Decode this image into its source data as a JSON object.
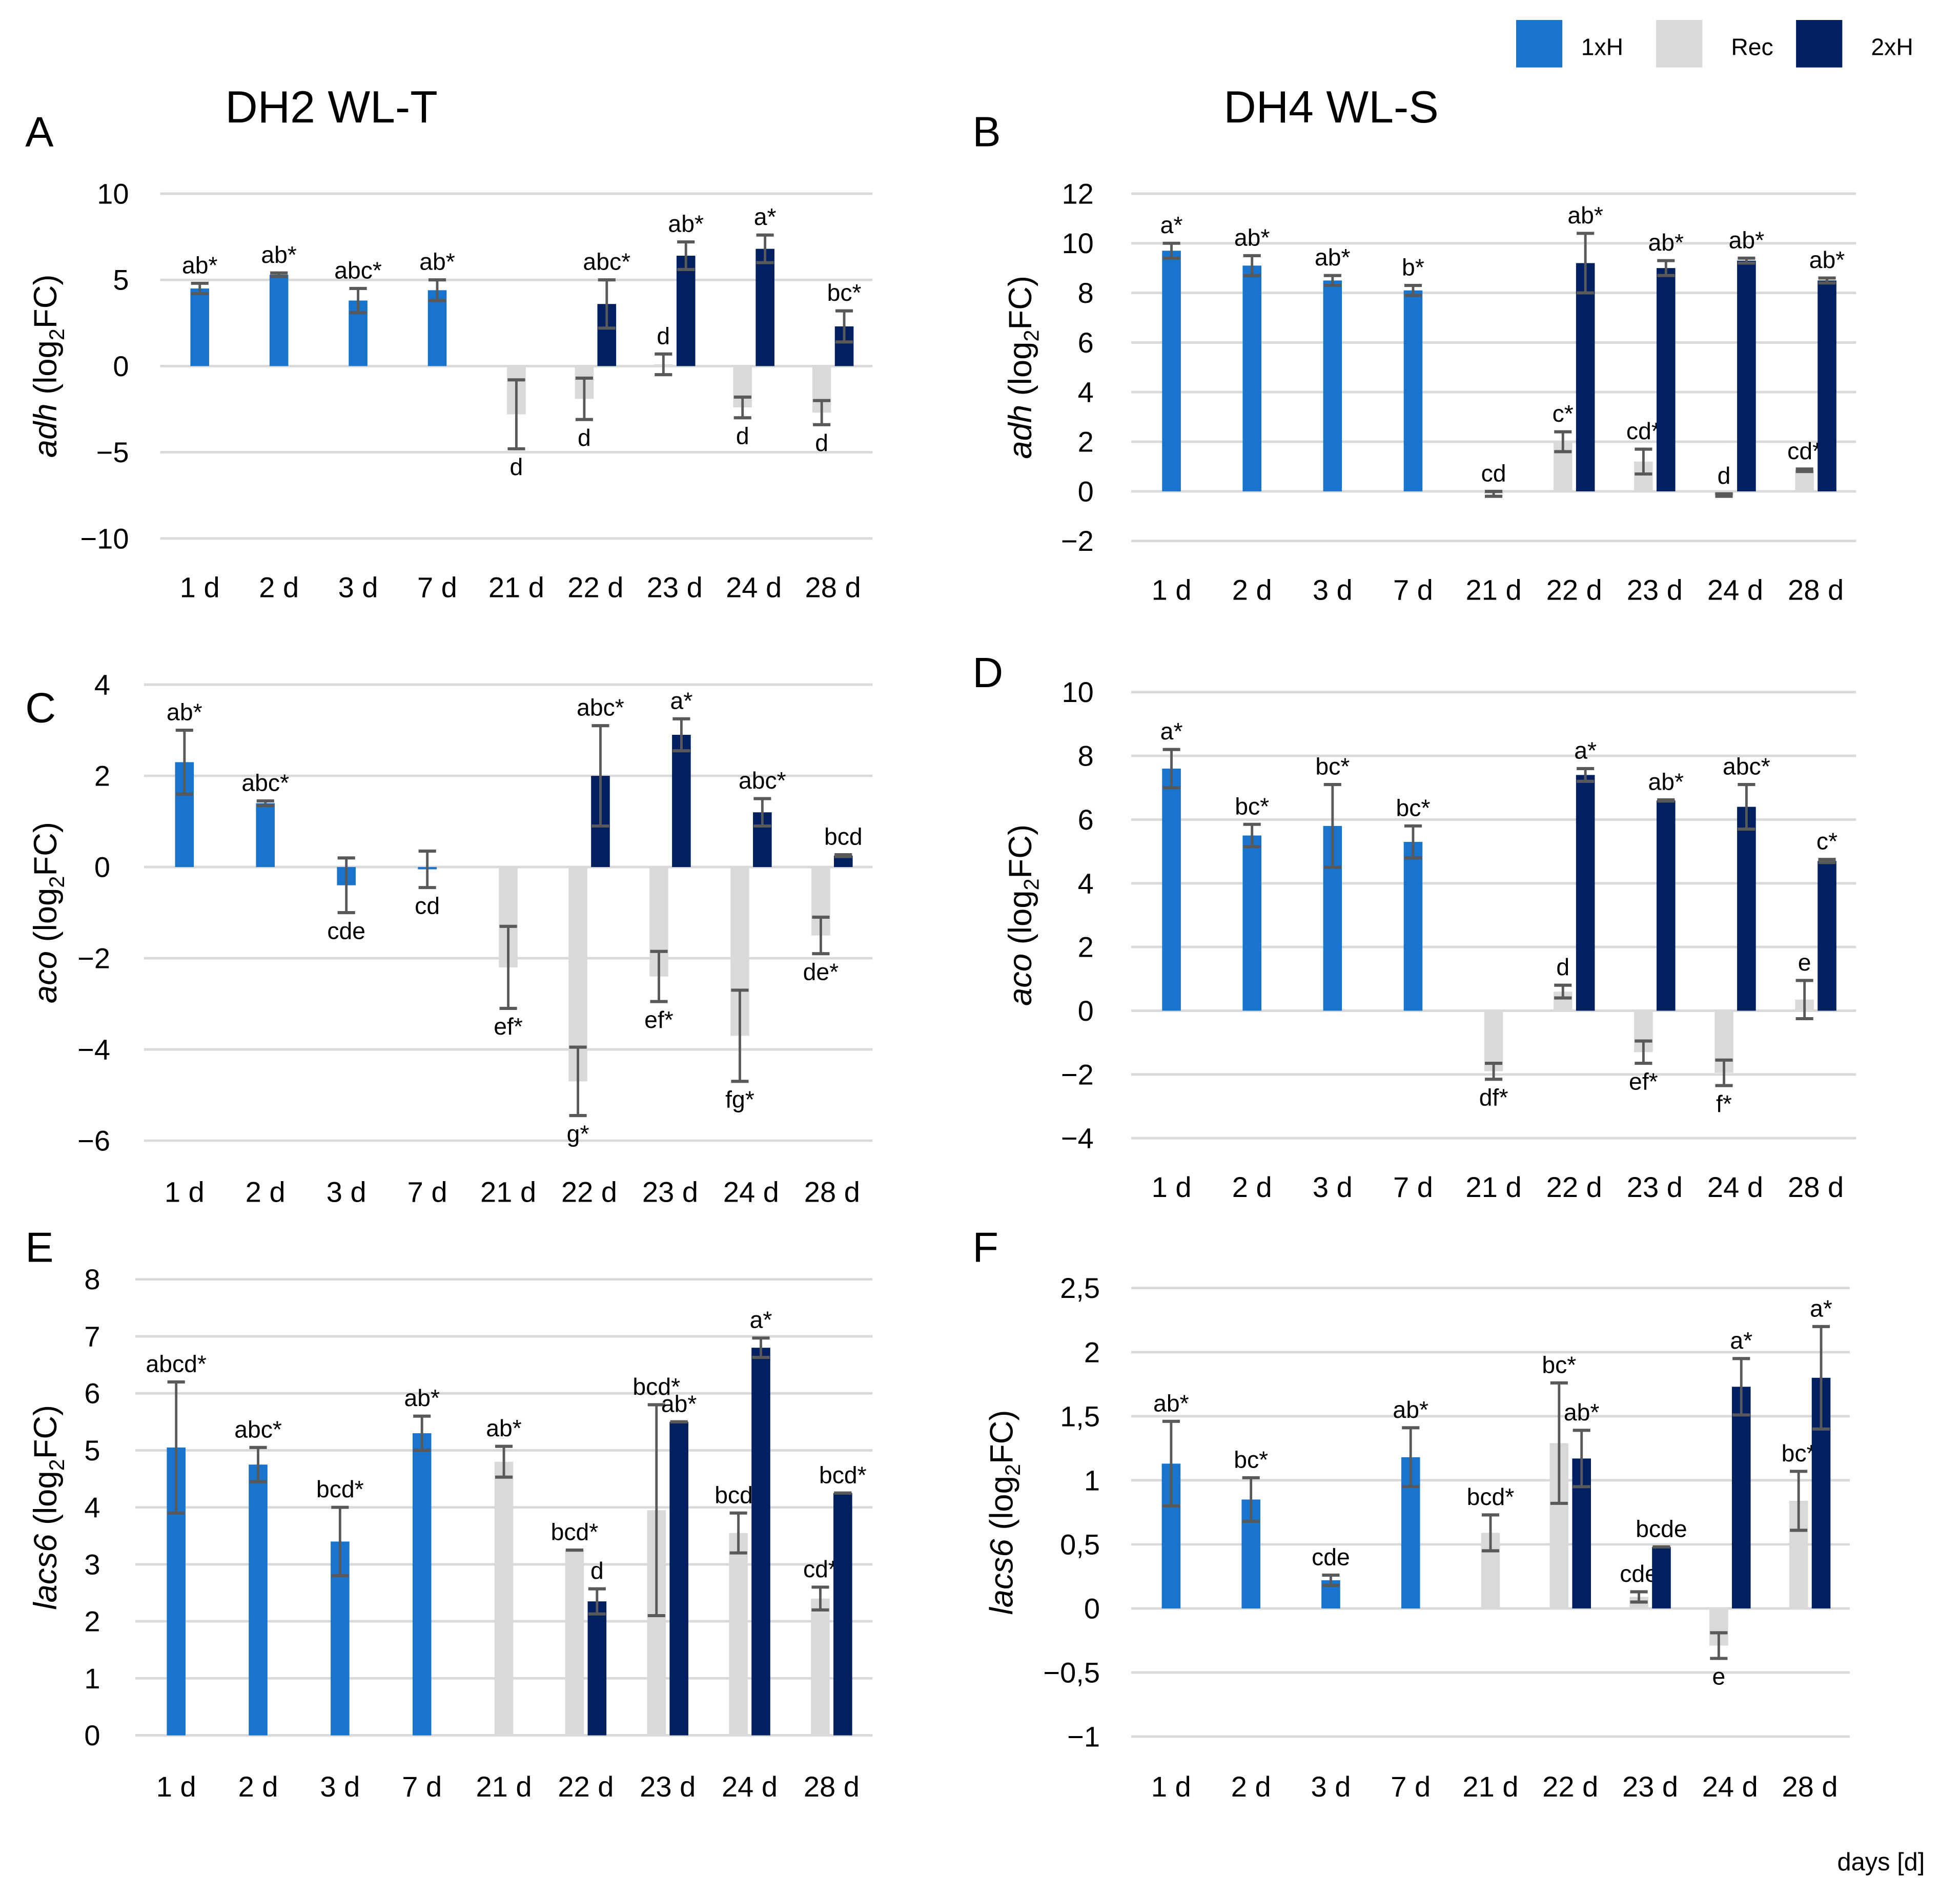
{
  "legend": {
    "items": [
      {
        "name": "1xH",
        "color": "#1874CD"
      },
      {
        "name": "Rec",
        "color": "#D9D9D9"
      },
      {
        "name": "2xH",
        "color": "#002060"
      }
    ]
  },
  "x_axis_note": "days [d]",
  "colors": {
    "grid": "#D9D9D9",
    "error_bar": "#595959"
  },
  "chart_data": [
    {
      "type": "bar",
      "panel_label": "A",
      "title": "DH2 WL-T",
      "ylabel": {
        "gene": "adh",
        "pre": " (log",
        "sub": "2",
        "post": "FC)"
      },
      "ylim": [
        -10,
        10
      ],
      "yticks": [
        10,
        5,
        0,
        -5,
        -10
      ],
      "ytick_labels": [
        "10",
        "5",
        "0",
        "−5",
        "−10"
      ],
      "grid": true,
      "categories": [
        "1 d",
        "2 d",
        "3 d",
        "7 d",
        "21 d",
        "22 d",
        "23 d",
        "24 d",
        "28 d"
      ],
      "series": [
        {
          "name": "1xH",
          "values": [
            4.5,
            5.3,
            3.8,
            4.4,
            null,
            null,
            null,
            null,
            null
          ],
          "errors": [
            0.3,
            0.1,
            0.7,
            0.6,
            null,
            null,
            null,
            null,
            null
          ],
          "labels": [
            "ab*",
            "ab*",
            "abc*",
            "ab*",
            null,
            null,
            null,
            null,
            null
          ]
        },
        {
          "name": "Rec",
          "values": [
            null,
            null,
            null,
            null,
            -2.8,
            -1.9,
            0.1,
            -2.4,
            -2.7
          ],
          "errors": [
            null,
            null,
            null,
            null,
            2.0,
            1.2,
            0.6,
            0.6,
            0.7
          ],
          "labels": [
            null,
            null,
            null,
            null,
            "d",
            "d",
            "d",
            "d",
            "d"
          ]
        },
        {
          "name": "2xH",
          "values": [
            null,
            null,
            null,
            null,
            null,
            3.6,
            6.4,
            6.8,
            2.3
          ],
          "errors": [
            null,
            null,
            null,
            null,
            null,
            1.4,
            0.8,
            0.8,
            0.9
          ],
          "labels": [
            null,
            null,
            null,
            null,
            null,
            "abc*",
            "ab*",
            "a*",
            "bc*"
          ]
        }
      ]
    },
    {
      "type": "bar",
      "panel_label": "B",
      "title": "DH4 WL-S",
      "ylabel": {
        "gene": "adh",
        "pre": " (log",
        "sub": "2",
        "post": "FC)"
      },
      "ylim": [
        -2,
        12
      ],
      "yticks": [
        12,
        10,
        8,
        6,
        4,
        2,
        0,
        -2
      ],
      "ytick_labels": [
        "12",
        "10",
        "8",
        "6",
        "4",
        "2",
        "0",
        "−2"
      ],
      "grid": true,
      "categories": [
        "1 d",
        "2 d",
        "3 d",
        "7 d",
        "21 d",
        "22 d",
        "23 d",
        "24 d",
        "28 d"
      ],
      "series": [
        {
          "name": "1xH",
          "values": [
            9.7,
            9.1,
            8.5,
            8.1,
            null,
            null,
            null,
            null,
            null
          ],
          "errors": [
            0.3,
            0.4,
            0.2,
            0.2,
            null,
            null,
            null,
            null,
            null
          ],
          "labels": [
            "a*",
            "ab*",
            "ab*",
            "b*",
            null,
            null,
            null,
            null,
            null
          ]
        },
        {
          "name": "Rec",
          "values": [
            null,
            null,
            null,
            null,
            -0.1,
            2.0,
            1.2,
            -0.15,
            0.85
          ],
          "errors": [
            null,
            null,
            null,
            null,
            0.1,
            0.4,
            0.5,
            0.05,
            0.05
          ],
          "labels": [
            null,
            null,
            null,
            null,
            "cd",
            "c*",
            "cd*",
            "d",
            "cd*"
          ]
        },
        {
          "name": "2xH",
          "values": [
            null,
            null,
            null,
            null,
            null,
            9.2,
            9.0,
            9.3,
            8.5
          ],
          "errors": [
            null,
            null,
            null,
            null,
            null,
            1.2,
            0.3,
            0.1,
            0.1
          ],
          "labels": [
            null,
            null,
            null,
            null,
            null,
            "ab*",
            "ab*",
            "ab*",
            "ab*"
          ]
        }
      ]
    },
    {
      "type": "bar",
      "panel_label": "C",
      "title": "",
      "ylabel": {
        "gene": "aco",
        "pre": " (log",
        "sub": "2",
        "post": "FC)"
      },
      "ylim": [
        -6,
        4
      ],
      "yticks": [
        4,
        2,
        0,
        -2,
        -4,
        -6
      ],
      "ytick_labels": [
        "4",
        "2",
        "0",
        "−2",
        "−4",
        "−6"
      ],
      "grid": true,
      "categories": [
        "1 d",
        "2 d",
        "3 d",
        "7 d",
        "21 d",
        "22 d",
        "23 d",
        "24 d",
        "28 d"
      ],
      "series": [
        {
          "name": "1xH",
          "values": [
            2.3,
            1.4,
            -0.4,
            -0.05,
            null,
            null,
            null,
            null,
            null
          ],
          "errors": [
            0.7,
            0.05,
            0.6,
            0.4,
            null,
            null,
            null,
            null,
            null
          ],
          "labels": [
            "ab*",
            "abc*",
            "cde",
            "cd",
            null,
            null,
            null,
            null,
            null
          ]
        },
        {
          "name": "Rec",
          "values": [
            null,
            null,
            null,
            null,
            -2.2,
            -4.7,
            -2.4,
            -3.7,
            -1.5
          ],
          "errors": [
            null,
            null,
            null,
            null,
            0.9,
            0.75,
            0.55,
            1.0,
            0.4
          ],
          "labels": [
            null,
            null,
            null,
            null,
            "ef*",
            "g*",
            "ef*",
            "fg*",
            "de*"
          ]
        },
        {
          "name": "2xH",
          "values": [
            null,
            null,
            null,
            null,
            null,
            2.0,
            2.9,
            1.2,
            0.25
          ],
          "errors": [
            null,
            null,
            null,
            null,
            null,
            1.1,
            0.35,
            0.3,
            0.02
          ],
          "labels": [
            null,
            null,
            null,
            null,
            null,
            "abc*",
            "a*",
            "abc*",
            "bcd"
          ]
        }
      ]
    },
    {
      "type": "bar",
      "panel_label": "D",
      "title": "",
      "ylabel": {
        "gene": "aco",
        "pre": " (log",
        "sub": "2",
        "post": "FC)"
      },
      "ylim": [
        -4,
        10
      ],
      "yticks": [
        10,
        8,
        6,
        4,
        2,
        0,
        -2,
        -4
      ],
      "ytick_labels": [
        "10",
        "8",
        "6",
        "4",
        "2",
        "0",
        "−2",
        "−4"
      ],
      "grid": true,
      "categories": [
        "1 d",
        "2 d",
        "3 d",
        "7 d",
        "21 d",
        "22 d",
        "23 d",
        "24 d",
        "28 d"
      ],
      "series": [
        {
          "name": "1xH",
          "values": [
            7.6,
            5.5,
            5.8,
            5.3,
            null,
            null,
            null,
            null,
            null
          ],
          "errors": [
            0.6,
            0.35,
            1.3,
            0.5,
            null,
            null,
            null,
            null,
            null
          ],
          "labels": [
            "a*",
            "bc*",
            "bc*",
            "bc*",
            null,
            null,
            null,
            null,
            null
          ]
        },
        {
          "name": "Rec",
          "values": [
            null,
            null,
            null,
            null,
            -1.9,
            0.6,
            -1.3,
            -1.95,
            0.35
          ],
          "errors": [
            null,
            null,
            null,
            null,
            0.25,
            0.2,
            0.35,
            0.4,
            0.6
          ],
          "labels": [
            null,
            null,
            null,
            null,
            "df*",
            "d",
            "ef*",
            "f*",
            "e"
          ]
        },
        {
          "name": "2xH",
          "values": [
            null,
            null,
            null,
            null,
            null,
            7.4,
            6.6,
            6.4,
            4.7
          ],
          "errors": [
            null,
            null,
            null,
            null,
            null,
            0.2,
            0.02,
            0.7,
            0.05
          ],
          "labels": [
            null,
            null,
            null,
            null,
            null,
            "a*",
            "ab*",
            "abc*",
            "c*"
          ]
        }
      ]
    },
    {
      "type": "bar",
      "panel_label": "E",
      "title": "",
      "ylabel": {
        "gene": "lacs6",
        "pre": " (log",
        "sub": "2",
        "post": "FC)"
      },
      "ylim": [
        0,
        8
      ],
      "yticks": [
        8,
        7,
        6,
        5,
        4,
        3,
        2,
        1,
        0
      ],
      "ytick_labels": [
        "8",
        "7",
        "6",
        "5",
        "4",
        "3",
        "2",
        "1",
        "0"
      ],
      "grid": true,
      "categories": [
        "1 d",
        "2 d",
        "3 d",
        "7 d",
        "21 d",
        "22 d",
        "23 d",
        "24 d",
        "28 d"
      ],
      "series": [
        {
          "name": "1xH",
          "values": [
            5.05,
            4.75,
            3.4,
            5.3,
            null,
            null,
            null,
            null,
            null
          ],
          "errors": [
            1.15,
            0.3,
            0.6,
            0.3,
            null,
            null,
            null,
            null,
            null
          ],
          "labels": [
            "abcd*",
            "abc*",
            "bcd*",
            "ab*",
            null,
            null,
            null,
            null,
            null
          ]
        },
        {
          "name": "Rec",
          "values": [
            null,
            null,
            null,
            null,
            4.8,
            3.25,
            3.95,
            3.55,
            2.4
          ],
          "errors": [
            null,
            null,
            null,
            null,
            0.27,
            0.0,
            1.85,
            0.35,
            0.2
          ],
          "labels": [
            null,
            null,
            null,
            null,
            "ab*",
            "bcd*",
            "bcd*",
            "bcd*",
            "cd*"
          ]
        },
        {
          "name": "2xH",
          "values": [
            null,
            null,
            null,
            null,
            null,
            2.35,
            5.5,
            6.8,
            4.25
          ],
          "errors": [
            null,
            null,
            null,
            null,
            null,
            0.22,
            0.0,
            0.17,
            0.0
          ],
          "labels": [
            null,
            null,
            null,
            null,
            null,
            "d",
            "ab*",
            "a*",
            "bcd*"
          ]
        }
      ]
    },
    {
      "type": "bar",
      "panel_label": "F",
      "title": "",
      "ylabel": {
        "gene": "lacs6",
        "pre": " (log",
        "sub": "2",
        "post": "FC)"
      },
      "ylim": [
        -1,
        2.5
      ],
      "yticks": [
        2.5,
        2,
        1.5,
        1,
        0.5,
        0,
        -0.5,
        -1
      ],
      "ytick_labels": [
        "2,5",
        "2",
        "1,5",
        "1",
        "0,5",
        "0",
        "−0,5",
        "−1"
      ],
      "grid": true,
      "categories": [
        "1 d",
        "2 d",
        "3 d",
        "7 d",
        "21 d",
        "22 d",
        "23 d",
        "24 d",
        "28 d"
      ],
      "series": [
        {
          "name": "1xH",
          "values": [
            1.13,
            0.85,
            0.22,
            1.18,
            null,
            null,
            null,
            null,
            null
          ],
          "errors": [
            0.33,
            0.17,
            0.04,
            0.23,
            null,
            null,
            null,
            null,
            null
          ],
          "labels": [
            "ab*",
            "bc*",
            "cde",
            "ab*",
            null,
            null,
            null,
            null,
            null
          ]
        },
        {
          "name": "Rec",
          "values": [
            null,
            null,
            null,
            null,
            0.59,
            1.29,
            0.09,
            -0.29,
            0.84
          ],
          "errors": [
            null,
            null,
            null,
            null,
            0.14,
            0.47,
            0.04,
            0.1,
            0.23
          ],
          "labels": [
            null,
            null,
            null,
            null,
            "bcd*",
            "bc*",
            "cde",
            "e",
            "bc*"
          ]
        },
        {
          "name": "2xH",
          "values": [
            null,
            null,
            null,
            null,
            null,
            1.17,
            0.48,
            1.73,
            1.8
          ],
          "errors": [
            null,
            null,
            null,
            null,
            null,
            0.22,
            0.0,
            0.22,
            0.4
          ],
          "labels": [
            null,
            null,
            null,
            null,
            null,
            "ab*",
            "bcde",
            "a*",
            "a*"
          ]
        }
      ]
    }
  ]
}
